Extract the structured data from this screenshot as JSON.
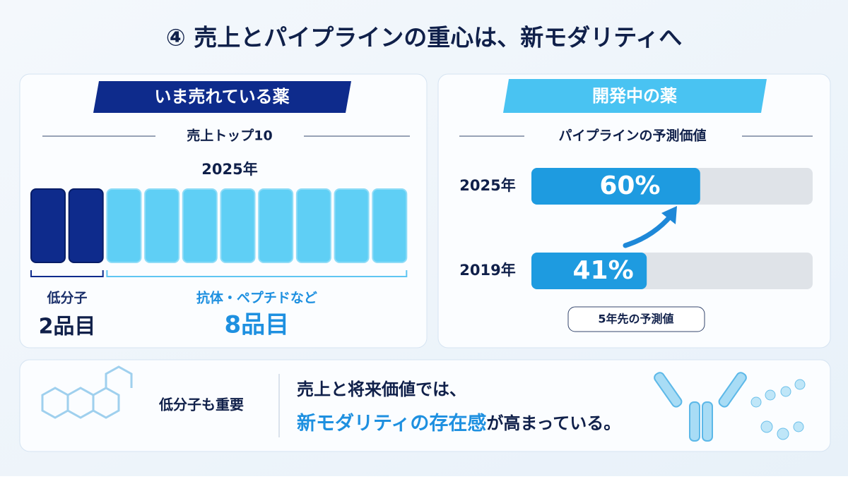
{
  "title": "④ 売上とパイプラインの重心は、新モダリティへ",
  "left_panel": {
    "header": "いま売れている薬",
    "subtitle": "売上トップ10",
    "year": "2025年",
    "groups": [
      {
        "label": "低分子",
        "count": 2,
        "count_label": "2品目",
        "color": "#0e2b8c"
      },
      {
        "label": "抗体・ペプチドなど",
        "count": 8,
        "count_label": "8品目",
        "color": "#5fcff5"
      }
    ]
  },
  "right_panel": {
    "header": "開発中の薬",
    "subtitle": "パイプラインの予測価値",
    "chart_data": {
      "type": "bar",
      "xlim": [
        0,
        100
      ],
      "color": "#1e9be0",
      "categories": [
        "2025年",
        "2019年"
      ],
      "values": [
        60,
        41
      ],
      "value_labels": [
        "60%",
        "41%"
      ]
    },
    "note": "5年先の予測値"
  },
  "bottom": {
    "left_text": "低分子も重要",
    "line1": "売上と将来価値では、",
    "highlight": "新モダリティの存在感",
    "line2_rest": "が高まっている。"
  }
}
